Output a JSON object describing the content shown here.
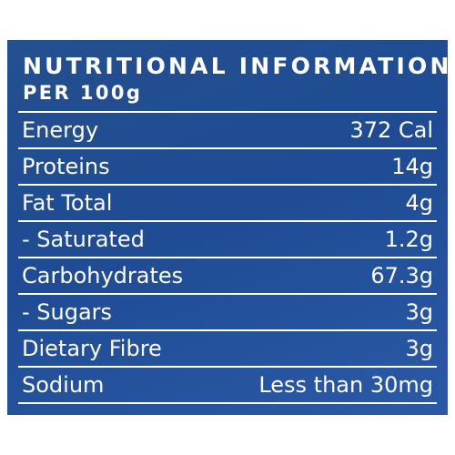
{
  "header": {
    "title": "NUTRITIONAL INFORMATION",
    "subtitle": "PER 100g"
  },
  "table": {
    "rows": [
      [
        "Energy",
        "372 Cal"
      ],
      [
        "Proteins",
        "14g"
      ],
      [
        "Fat Total",
        "4g"
      ],
      [
        "- Saturated",
        "1.2g"
      ],
      [
        "Carbohydrates",
        "67.3g"
      ],
      [
        "- Sugars",
        "3g"
      ],
      [
        "Dietary Fibre",
        "3g"
      ],
      [
        "Sodium",
        "Less than 30mg"
      ]
    ]
  }
}
